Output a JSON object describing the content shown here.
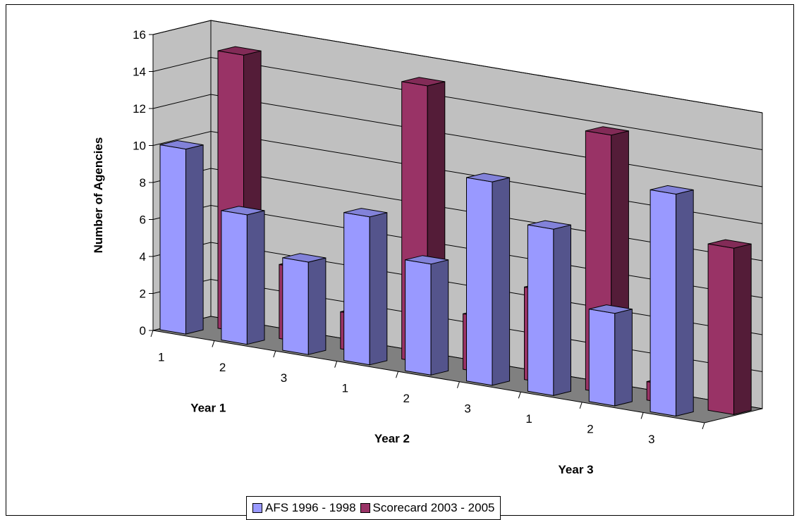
{
  "chart_data": {
    "type": "bar",
    "style": "3d-clustered-column",
    "ylabel": "Number of Agencies",
    "ylim": [
      0,
      16
    ],
    "yticks": [
      "0",
      "2",
      "4",
      "6",
      "8",
      "10",
      "12",
      "14",
      "16"
    ],
    "grid": true,
    "legend_position": "bottom",
    "groups": [
      {
        "label": "Year 1",
        "categories": [
          "1",
          "2",
          "3"
        ]
      },
      {
        "label": "Year 2",
        "categories": [
          "1",
          "2",
          "3"
        ]
      },
      {
        "label": "Year 3",
        "categories": [
          "1",
          "2",
          "3"
        ]
      }
    ],
    "series": [
      {
        "name": "AFS 1996 - 1998",
        "color": "#9999ff",
        "values": [
          10,
          7,
          5,
          8,
          6,
          11,
          9,
          5,
          12
        ]
      },
      {
        "name": "Scorecard 2003 - 2005",
        "color": "#993366",
        "values": [
          15,
          4,
          2,
          15,
          3,
          5,
          14,
          1,
          9
        ]
      }
    ]
  }
}
